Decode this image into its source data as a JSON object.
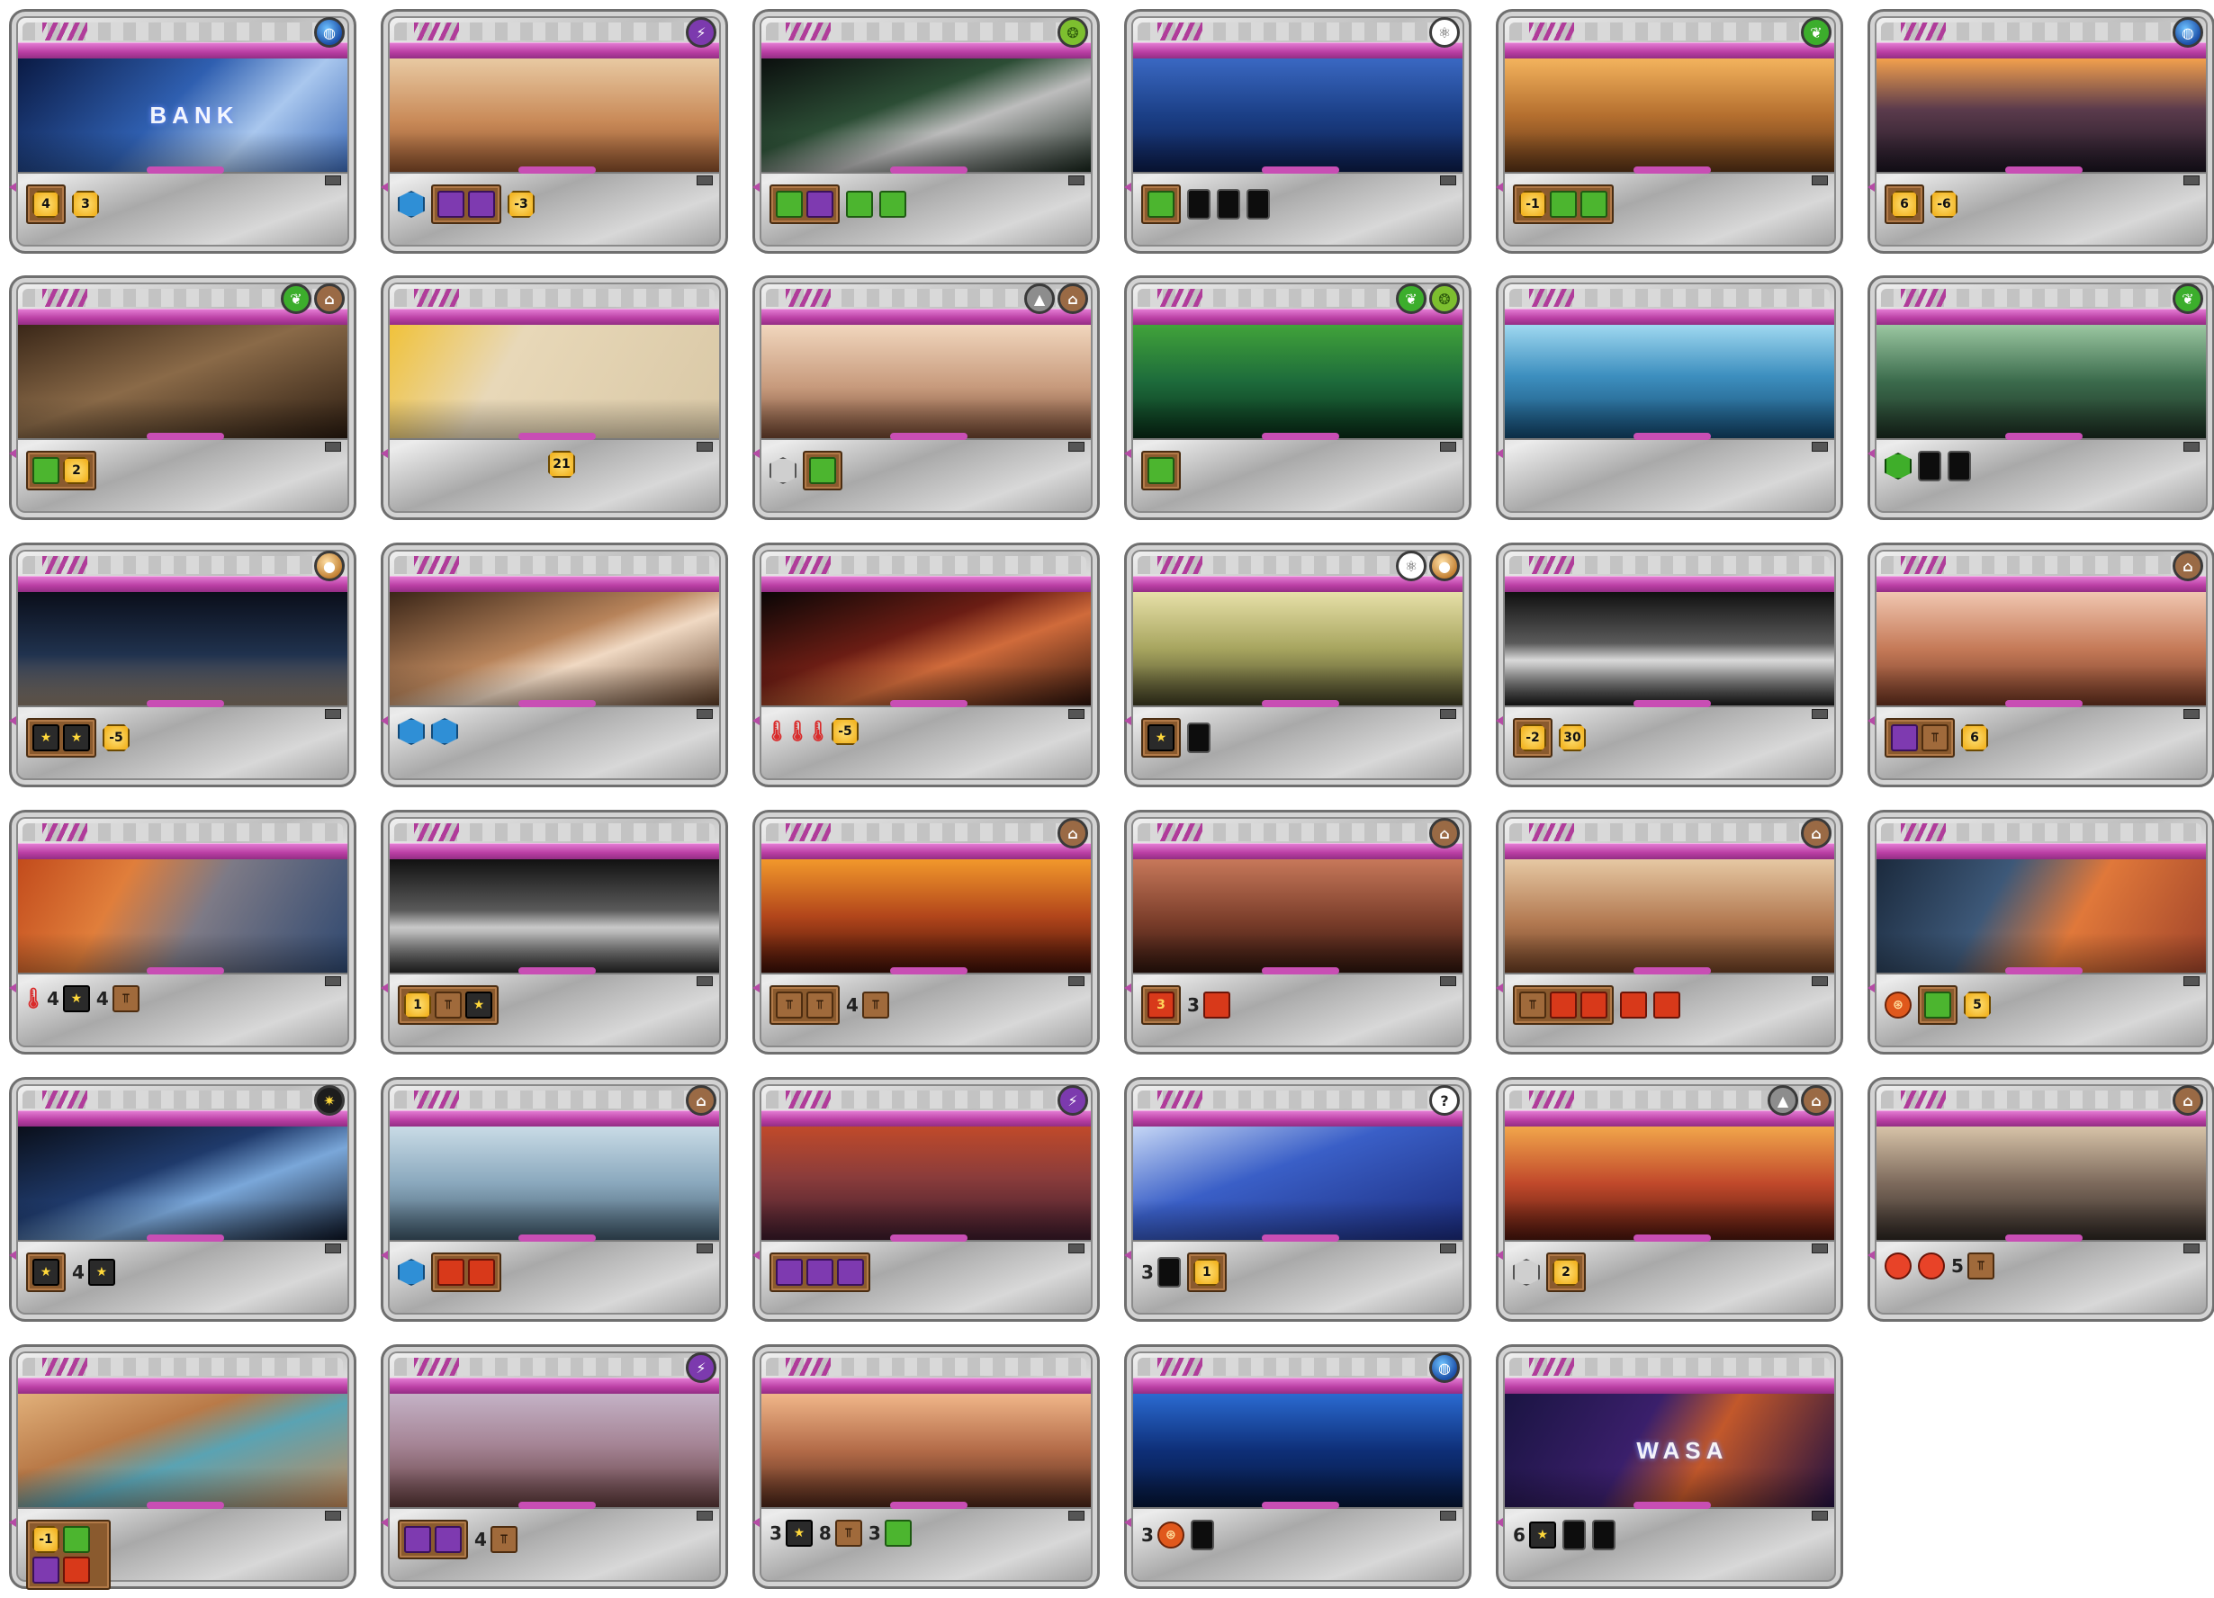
{
  "cards": [
    {
      "tags": [
        "earth"
      ],
      "art": "linear-gradient(135deg,#0a1a44 0%,#2f5fb0 45%,#a9c7ee 70%,#3d6bb8 100%)",
      "art_text": "BANK",
      "effects": [
        {
          "type": "box",
          "items": [
            {
              "t": "mc",
              "v": "4"
            }
          ]
        },
        {
          "type": "res",
          "t": "mc",
          "v": "3"
        }
      ]
    },
    {
      "tags": [
        "power"
      ],
      "art": "linear-gradient(180deg,#e8c9a2 0%,#c98a58 55%,#8a4f2b 100%)",
      "effects": [
        {
          "type": "res",
          "t": "ocean",
          "v": ""
        },
        {
          "type": "box",
          "items": [
            {
              "t": "energy",
              "v": ""
            },
            {
              "t": "energy",
              "v": ""
            }
          ]
        },
        {
          "type": "res",
          "t": "mc",
          "v": "-3"
        }
      ]
    },
    {
      "tags": [
        "microbe"
      ],
      "art": "linear-gradient(160deg,#0b0f0e 0%,#2c4d35 40%,#bdbdbd 60%,#17241b 100%)",
      "effects": [
        {
          "type": "box",
          "items": [
            {
              "t": "plant",
              "v": ""
            },
            {
              "t": "energy",
              "v": ""
            }
          ]
        },
        {
          "type": "res",
          "t": "plant",
          "v": ""
        },
        {
          "type": "res",
          "t": "plant",
          "v": ""
        }
      ]
    },
    {
      "tags": [
        "science"
      ],
      "art": "linear-gradient(180deg,#3a68c2 0%,#1b3f86 50%,#0c1c4a 100%)",
      "effects": [
        {
          "type": "box",
          "items": [
            {
              "t": "plant",
              "v": ""
            }
          ]
        },
        {
          "type": "res",
          "t": "card-res",
          "v": ""
        },
        {
          "type": "res",
          "t": "card-res",
          "v": ""
        },
        {
          "type": "res",
          "t": "card-res",
          "v": ""
        }
      ]
    },
    {
      "tags": [
        "plant"
      ],
      "art": "linear-gradient(180deg,#f3b35d 0%,#b56f2f 50%,#5a3316 100%)",
      "effects": [
        {
          "type": "box",
          "items": [
            {
              "t": "mc",
              "v": "-1"
            },
            {
              "t": "plant",
              "v": ""
            },
            {
              "t": "plant",
              "v": ""
            }
          ]
        }
      ]
    },
    {
      "tags": [
        "earth"
      ],
      "art": "linear-gradient(180deg,#f2a04d 0%,#5b3b4c 45%,#1a1420 100%)",
      "effects": [
        {
          "type": "box",
          "items": [
            {
              "t": "mc",
              "v": "6"
            }
          ]
        },
        {
          "type": "res",
          "t": "mc",
          "v": "-6"
        }
      ]
    },
    {
      "tags": [
        "plant",
        "building"
      ],
      "art": "linear-gradient(160deg,#3a2718 0%,#8a6a48 45%,#2a1b10 100%)",
      "effects": [
        {
          "type": "box",
          "items": [
            {
              "t": "plant",
              "v": ""
            },
            {
              "t": "mc",
              "v": "2"
            }
          ]
        }
      ]
    },
    {
      "tags": [],
      "art": "linear-gradient(120deg,#f0c23a 0%,#e8d8b8 35%,#d9c8a6 100%)",
      "effects": [
        {
          "type": "spacer"
        },
        {
          "type": "res",
          "t": "mc",
          "v": "21"
        }
      ]
    },
    {
      "tags": [
        "city",
        "building"
      ],
      "art": "linear-gradient(180deg,#f1d6bd 0%,#c79a7c 55%,#6f4530 100%)",
      "effects": [
        {
          "type": "res",
          "t": "cityhex",
          "v": ""
        },
        {
          "type": "box",
          "items": [
            {
              "t": "plant",
              "v": ""
            }
          ]
        }
      ]
    },
    {
      "tags": [
        "plant",
        "microbe"
      ],
      "art": "linear-gradient(180deg,#41a33a 0%,#1d6b3b 50%,#082a16 100%)",
      "effects": [
        {
          "type": "box",
          "items": [
            {
              "t": "plant",
              "v": ""
            }
          ]
        }
      ]
    },
    {
      "tags": [],
      "art": "linear-gradient(180deg,#9fd8f0 0%,#3d8fbf 45%,#13466b 100%)",
      "effects": []
    },
    {
      "tags": [
        "plant"
      ],
      "art": "linear-gradient(180deg,#9bc7a1 0%,#3b6b4c 50%,#1b2c20 100%)",
      "effects": [
        {
          "type": "res",
          "t": "greenery",
          "v": ""
        },
        {
          "type": "res",
          "t": "card-res",
          "v": ""
        },
        {
          "type": "res",
          "t": "card-res",
          "v": ""
        }
      ]
    },
    {
      "tags": [
        "jovian"
      ],
      "art": "linear-gradient(180deg,#0a0e1a 0%,#20324e 55%,#8a7a6a 100%)",
      "effects": [
        {
          "type": "box",
          "items": [
            {
              "t": "titanium",
              "v": "★"
            },
            {
              "t": "titanium",
              "v": "★"
            }
          ]
        },
        {
          "type": "res",
          "t": "mc",
          "v": "-5"
        }
      ]
    },
    {
      "tags": [],
      "art": "linear-gradient(160deg,#3b2618 0%,#b7835a 45%,#f0d9c3 60%,#5a3a24 100%)",
      "effects": [
        {
          "type": "res",
          "t": "ocean",
          "v": ""
        },
        {
          "type": "res",
          "t": "ocean",
          "v": ""
        }
      ]
    },
    {
      "tags": [],
      "art": "linear-gradient(160deg,#0a0606 0%,#6b1d14 40%,#d06b3b 60%,#2a120b 100%)",
      "effects": [
        {
          "type": "res",
          "t": "temp",
          "v": "🌡"
        },
        {
          "type": "res",
          "t": "temp",
          "v": "🌡"
        },
        {
          "type": "res",
          "t": "temp",
          "v": "🌡"
        },
        {
          "type": "res",
          "t": "mc",
          "v": "-5"
        }
      ]
    },
    {
      "tags": [
        "science",
        "jovian"
      ],
      "art": "linear-gradient(180deg,#e7e0a8 0%,#a7a55f 50%,#3d3b22 100%)",
      "effects": [
        {
          "type": "box",
          "items": [
            {
              "t": "titanium",
              "v": "★"
            }
          ]
        },
        {
          "type": "res",
          "t": "card-res",
          "v": ""
        }
      ]
    },
    {
      "tags": [],
      "art": "linear-gradient(180deg,#101010 0%,#5a5a5a 45%,#d9d9d9 60%,#1a1a1a 100%)",
      "effects": [
        {
          "type": "box",
          "items": [
            {
              "t": "mc",
              "v": "-2"
            }
          ]
        },
        {
          "type": "res",
          "t": "mc",
          "v": "30"
        }
      ]
    },
    {
      "tags": [
        "building"
      ],
      "art": "linear-gradient(180deg,#f0c6b0 0%,#c57a58 50%,#6b3320 100%)",
      "effects": [
        {
          "type": "box",
          "items": [
            {
              "t": "energy",
              "v": ""
            },
            {
              "t": "steel",
              "v": "⫪"
            }
          ]
        },
        {
          "type": "res",
          "t": "mc",
          "v": "6"
        }
      ]
    },
    {
      "tags": [],
      "art": "linear-gradient(120deg,#c24b1c 0%,#e07e3b 30%,#7d7a86 55%,#2f4870 100%)",
      "effects": [
        {
          "type": "res",
          "t": "temp",
          "v": "🌡"
        },
        {
          "type": "grp",
          "n": "4",
          "t": "titanium",
          "v": "★"
        },
        {
          "type": "grp",
          "n": "4",
          "t": "steel",
          "v": "⫪"
        }
      ]
    },
    {
      "tags": [],
      "art": "linear-gradient(180deg,#111 0%,#5a5a5a 45%,#c9c9c9 60%,#2a2a2a 100%)",
      "effects": [
        {
          "type": "box",
          "items": [
            {
              "t": "mc",
              "v": "1"
            },
            {
              "t": "steel",
              "v": "⫪"
            },
            {
              "t": "titanium",
              "v": "★"
            }
          ]
        }
      ]
    },
    {
      "tags": [
        "building"
      ],
      "art": "linear-gradient(180deg,#f2982b 0%,#b3461b 50%,#3a0e06 100%)",
      "effects": [
        {
          "type": "box",
          "items": [
            {
              "t": "steel",
              "v": "⫪"
            },
            {
              "t": "steel",
              "v": "⫪"
            }
          ]
        },
        {
          "type": "grp",
          "n": "4",
          "t": "steel",
          "v": "⫪"
        }
      ]
    },
    {
      "tags": [
        "building"
      ],
      "art": "linear-gradient(180deg,#c7785a 0%,#7a3d2a 55%,#2d140d 100%)",
      "effects": [
        {
          "type": "box",
          "items": [
            {
              "t": "heat",
              "v": "3"
            }
          ]
        },
        {
          "type": "grp",
          "n": "3",
          "t": "heat",
          "v": ""
        }
      ]
    },
    {
      "tags": [
        "building"
      ],
      "art": "linear-gradient(180deg,#e6c8a3 0%,#b37a52 55%,#6b3e23 100%)",
      "effects": [
        {
          "type": "box",
          "items": [
            {
              "t": "steel",
              "v": "⫪"
            },
            {
              "t": "heat",
              "v": ""
            },
            {
              "t": "heat",
              "v": ""
            }
          ]
        },
        {
          "type": "res",
          "t": "heat",
          "v": ""
        },
        {
          "type": "res",
          "t": "heat",
          "v": ""
        }
      ]
    },
    {
      "tags": [],
      "art": "linear-gradient(120deg,#1b2a3d 0%,#3d5878 35%,#e0783a 60%,#a0442a 100%)",
      "effects": [
        {
          "type": "res",
          "t": "production",
          "v": "⊛"
        },
        {
          "type": "box",
          "items": [
            {
              "t": "plant",
              "v": ""
            }
          ]
        },
        {
          "type": "res",
          "t": "mc",
          "v": "5"
        }
      ]
    },
    {
      "tags": [
        "space"
      ],
      "art": "linear-gradient(160deg,#0a0f1a 0%,#1f3a6b 40%,#7aa7d9 60%,#0c1424 100%)",
      "effects": [
        {
          "type": "box",
          "items": [
            {
              "t": "titanium",
              "v": "★"
            }
          ]
        },
        {
          "type": "grp",
          "n": "4",
          "t": "titanium",
          "v": "★"
        }
      ]
    },
    {
      "tags": [
        "building"
      ],
      "art": "linear-gradient(180deg,#c9dbe6 0%,#8aa8bd 50%,#3d5566 100%)",
      "effects": [
        {
          "type": "res",
          "t": "ocean",
          "v": ""
        },
        {
          "type": "box",
          "items": [
            {
              "t": "heat",
              "v": ""
            },
            {
              "t": "heat",
              "v": ""
            }
          ]
        }
      ]
    },
    {
      "tags": [
        "power"
      ],
      "art": "linear-gradient(180deg,#c04a2a 0%,#8a3c3b 45%,#3b1a2a 100%)",
      "effects": [
        {
          "type": "box",
          "items": [
            {
              "t": "energy",
              "v": ""
            },
            {
              "t": "energy",
              "v": ""
            },
            {
              "t": "energy",
              "v": ""
            }
          ]
        }
      ]
    },
    {
      "tags": [
        "wild"
      ],
      "art": "linear-gradient(160deg,#c5d6f5 0%,#3a5fc7 40%,#1a2a7a 100%)",
      "effects": [
        {
          "type": "grp",
          "n": "3",
          "t": "card-res",
          "v": ""
        },
        {
          "type": "box",
          "items": [
            {
              "t": "mc",
              "v": "1"
            }
          ]
        }
      ]
    },
    {
      "tags": [
        "city",
        "building"
      ],
      "art": "linear-gradient(180deg,#f1a64b 0%,#c1492b 50%,#4a150c 100%)",
      "effects": [
        {
          "type": "res",
          "t": "cityhex",
          "v": ""
        },
        {
          "type": "box",
          "items": [
            {
              "t": "mc",
              "v": "2"
            }
          ]
        }
      ]
    },
    {
      "tags": [
        "building"
      ],
      "art": "linear-gradient(180deg,#d7c3a8 0%,#7d6a5c 50%,#2d2622 100%)",
      "effects": [
        {
          "type": "res",
          "t": "microbe",
          "v": ""
        },
        {
          "type": "res",
          "t": "microbe",
          "v": ""
        },
        {
          "type": "grp",
          "n": "5",
          "t": "steel",
          "v": "⫪"
        }
      ]
    },
    {
      "tags": [],
      "art": "linear-gradient(160deg,#e1b07a 0%,#b97a48 35%,#5aa3b3 55%,#c78a58 100%)",
      "effects": [
        {
          "type": "box2",
          "items": [
            {
              "t": "mc",
              "v": "-1"
            },
            {
              "t": "plant",
              "v": ""
            },
            {
              "t": "energy",
              "v": ""
            },
            {
              "t": "heat",
              "v": ""
            }
          ]
        }
      ]
    },
    {
      "tags": [
        "power"
      ],
      "art": "linear-gradient(180deg,#c4b2c6 0%,#a58495 45%,#5d3a3a 100%)",
      "effects": [
        {
          "type": "box",
          "items": [
            {
              "t": "energy",
              "v": ""
            },
            {
              "t": "energy",
              "v": ""
            }
          ]
        },
        {
          "type": "grp",
          "n": "4",
          "t": "steel",
          "v": "⫪"
        }
      ]
    },
    {
      "tags": [],
      "art": "linear-gradient(180deg,#f0b689 0%,#b36b48 50%,#4a2518 100%)",
      "effects": [
        {
          "type": "grp",
          "n": "3",
          "t": "titanium",
          "v": "★"
        },
        {
          "type": "grp",
          "n": "8",
          "t": "steel",
          "v": "⫪"
        },
        {
          "type": "grp",
          "n": "3",
          "t": "plant",
          "v": ""
        }
      ]
    },
    {
      "tags": [
        "earth"
      ],
      "art": "linear-gradient(180deg,#2a6ad1 0%,#0e2f78 50%,#051536 100%)",
      "effects": [
        {
          "type": "grp",
          "n": "3",
          "t": "production",
          "v": "⊛"
        },
        {
          "type": "res",
          "t": "card-res",
          "v": ""
        }
      ]
    },
    {
      "tags": [],
      "art": "linear-gradient(120deg,#1a1442 0%,#3a1f6b 40%,#c2582b 60%,#221040 100%)",
      "art_text": "WASA",
      "effects": [
        {
          "type": "grp",
          "n": "6",
          "t": "titanium",
          "v": "★"
        },
        {
          "type": "res",
          "t": "card-res",
          "v": ""
        },
        {
          "type": "res",
          "t": "card-res",
          "v": ""
        }
      ]
    }
  ]
}
